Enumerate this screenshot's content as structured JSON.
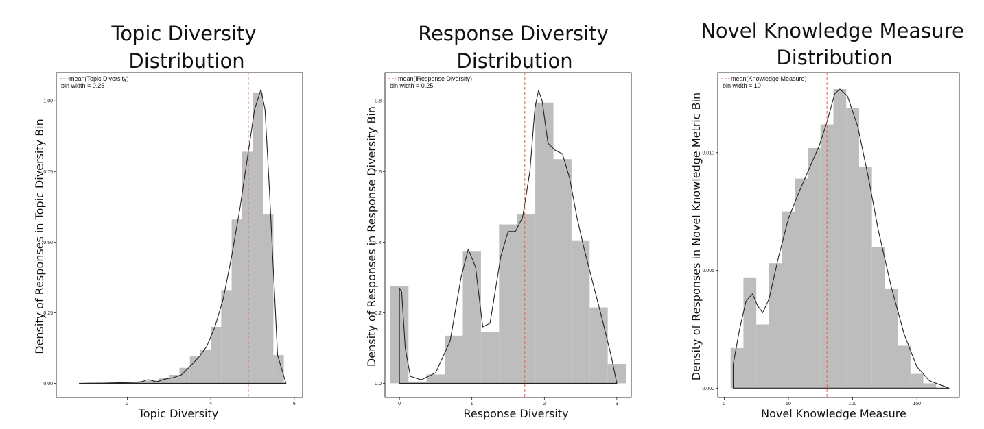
{
  "chart_data": [
    {
      "type": "bar",
      "title_lines": [
        "Topic Diversity",
        "Distribution"
      ],
      "xlabel": "Topic Diversity",
      "ylabel": "Density of Responses in Topic Diversity Bin",
      "legend": [
        "mean(Topic Diversity)",
        "bin width = 0.25"
      ],
      "xlim": [
        0.3,
        6.2
      ],
      "ylim": [
        -0.05,
        1.1
      ],
      "xticks": [
        2,
        4,
        6
      ],
      "yticks": [
        0.0,
        0.25,
        0.5,
        0.75,
        1.0
      ],
      "ytick_labels": [
        "0.00",
        "0.25",
        "0.50",
        "0.75",
        "1.00"
      ],
      "bin_width": 0.25,
      "bins": [
        {
          "x": 1.125,
          "y": 0.002
        },
        {
          "x": 1.375,
          "y": 0.002
        },
        {
          "x": 1.625,
          "y": 0.003
        },
        {
          "x": 1.875,
          "y": 0.004
        },
        {
          "x": 2.125,
          "y": 0.005
        },
        {
          "x": 2.375,
          "y": 0.008
        },
        {
          "x": 2.625,
          "y": 0.01
        },
        {
          "x": 2.875,
          "y": 0.02
        },
        {
          "x": 3.125,
          "y": 0.03
        },
        {
          "x": 3.375,
          "y": 0.055
        },
        {
          "x": 3.625,
          "y": 0.095
        },
        {
          "x": 3.875,
          "y": 0.12
        },
        {
          "x": 4.125,
          "y": 0.2
        },
        {
          "x": 4.375,
          "y": 0.33
        },
        {
          "x": 4.625,
          "y": 0.58
        },
        {
          "x": 4.875,
          "y": 0.82
        },
        {
          "x": 5.125,
          "y": 1.03
        },
        {
          "x": 5.375,
          "y": 0.6
        },
        {
          "x": 5.625,
          "y": 0.1
        }
      ],
      "density_curve": [
        [
          0.85,
          0.0
        ],
        [
          1.5,
          0.001
        ],
        [
          2.0,
          0.003
        ],
        [
          2.3,
          0.004
        ],
        [
          2.5,
          0.013
        ],
        [
          2.6,
          0.01
        ],
        [
          2.7,
          0.005
        ],
        [
          2.9,
          0.015
        ],
        [
          3.1,
          0.02
        ],
        [
          3.3,
          0.03
        ],
        [
          3.5,
          0.06
        ],
        [
          3.7,
          0.09
        ],
        [
          3.9,
          0.13
        ],
        [
          4.1,
          0.2
        ],
        [
          4.3,
          0.3
        ],
        [
          4.5,
          0.45
        ],
        [
          4.7,
          0.62
        ],
        [
          4.9,
          0.82
        ],
        [
          5.05,
          0.97
        ],
        [
          5.2,
          1.04
        ],
        [
          5.3,
          0.97
        ],
        [
          5.4,
          0.7
        ],
        [
          5.5,
          0.4
        ],
        [
          5.6,
          0.1
        ],
        [
          5.8,
          0.0
        ]
      ],
      "mean": 4.9,
      "colors": {
        "bar": "#bdbdbd",
        "mean_line": "#e8604c",
        "curve": "#222222"
      }
    },
    {
      "type": "bar",
      "title_lines": [
        "Response Diversity",
        "Distribution"
      ],
      "xlabel": "Response Diversity",
      "ylabel": "Density of Responses in Response Diversity Bin",
      "legend": [
        "mean(lResponse Diversity)",
        "bin width = 0.25"
      ],
      "xlim": [
        -0.2,
        3.2
      ],
      "ylim": [
        -0.04,
        0.88
      ],
      "xticks": [
        0,
        1,
        2,
        3
      ],
      "yticks": [
        0.0,
        0.2,
        0.4,
        0.6,
        0.8
      ],
      "ytick_labels": [
        "0.0",
        "0.2",
        "0.4",
        "0.6",
        "0.8"
      ],
      "bin_width": 0.25,
      "bins": [
        {
          "x": 0.0,
          "y": 0.275
        },
        {
          "x": 0.25,
          "y": 0.005
        },
        {
          "x": 0.5,
          "y": 0.025
        },
        {
          "x": 0.75,
          "y": 0.135
        },
        {
          "x": 1.0,
          "y": 0.375
        },
        {
          "x": 1.25,
          "y": 0.145
        },
        {
          "x": 1.5,
          "y": 0.45
        },
        {
          "x": 1.75,
          "y": 0.48
        },
        {
          "x": 2.0,
          "y": 0.795
        },
        {
          "x": 2.25,
          "y": 0.635
        },
        {
          "x": 2.5,
          "y": 0.405
        },
        {
          "x": 2.75,
          "y": 0.215
        },
        {
          "x": 3.0,
          "y": 0.055
        }
      ],
      "density_curve": [
        [
          0.0,
          0.27
        ],
        [
          0.03,
          0.26
        ],
        [
          0.08,
          0.1
        ],
        [
          0.15,
          0.02
        ],
        [
          0.3,
          0.01
        ],
        [
          0.5,
          0.03
        ],
        [
          0.7,
          0.12
        ],
        [
          0.85,
          0.3
        ],
        [
          0.95,
          0.38
        ],
        [
          1.05,
          0.33
        ],
        [
          1.15,
          0.16
        ],
        [
          1.25,
          0.17
        ],
        [
          1.4,
          0.36
        ],
        [
          1.5,
          0.43
        ],
        [
          1.6,
          0.43
        ],
        [
          1.7,
          0.47
        ],
        [
          1.8,
          0.6
        ],
        [
          1.87,
          0.78
        ],
        [
          1.92,
          0.83
        ],
        [
          1.97,
          0.8
        ],
        [
          2.05,
          0.68
        ],
        [
          2.15,
          0.66
        ],
        [
          2.25,
          0.65
        ],
        [
          2.35,
          0.58
        ],
        [
          2.45,
          0.47
        ],
        [
          2.55,
          0.38
        ],
        [
          2.65,
          0.3
        ],
        [
          2.8,
          0.18
        ],
        [
          2.92,
          0.08
        ],
        [
          3.0,
          0.0
        ]
      ],
      "mean": 1.73,
      "colors": {
        "bar": "#bdbdbd",
        "mean_line": "#e8604c",
        "curve": "#222222"
      }
    },
    {
      "type": "bar",
      "title_lines": [
        "Novel Knowledge Measure",
        "Distribution"
      ],
      "xlabel": "Novel Knowledge Measure",
      "ylabel": "Density of Responses in Novel Knowledge Metric Bin",
      "legend": [
        "mean(Knowledge Measure)",
        "bin width = 10"
      ],
      "xlim": [
        -5,
        183
      ],
      "ylim": [
        -0.0004,
        0.0134
      ],
      "xticks": [
        0,
        50,
        100,
        150
      ],
      "yticks": [
        0.0,
        0.005,
        0.01
      ],
      "ytick_labels": [
        "0.000",
        "0.005",
        "0.010"
      ],
      "bin_width": 10,
      "bins": [
        {
          "x": 10,
          "y": 0.0017
        },
        {
          "x": 20,
          "y": 0.0047
        },
        {
          "x": 30,
          "y": 0.0027
        },
        {
          "x": 40,
          "y": 0.0053
        },
        {
          "x": 50,
          "y": 0.0075
        },
        {
          "x": 60,
          "y": 0.0089
        },
        {
          "x": 70,
          "y": 0.0102
        },
        {
          "x": 80,
          "y": 0.0112
        },
        {
          "x": 90,
          "y": 0.0127
        },
        {
          "x": 100,
          "y": 0.0119
        },
        {
          "x": 110,
          "y": 0.0094
        },
        {
          "x": 120,
          "y": 0.006
        },
        {
          "x": 130,
          "y": 0.0042
        },
        {
          "x": 140,
          "y": 0.0018
        },
        {
          "x": 150,
          "y": 0.0006
        },
        {
          "x": 160,
          "y": 0.0002
        }
      ],
      "density_curve": [
        [
          7,
          0.001
        ],
        [
          12,
          0.0025
        ],
        [
          17,
          0.0037
        ],
        [
          22,
          0.004
        ],
        [
          26,
          0.0035
        ],
        [
          30,
          0.0032
        ],
        [
          35,
          0.0038
        ],
        [
          42,
          0.0055
        ],
        [
          50,
          0.0072
        ],
        [
          58,
          0.0083
        ],
        [
          66,
          0.0093
        ],
        [
          74,
          0.0103
        ],
        [
          80,
          0.0113
        ],
        [
          86,
          0.0125
        ],
        [
          90,
          0.0127
        ],
        [
          96,
          0.0124
        ],
        [
          104,
          0.0111
        ],
        [
          112,
          0.009
        ],
        [
          120,
          0.0067
        ],
        [
          130,
          0.0043
        ],
        [
          140,
          0.0023
        ],
        [
          150,
          0.0009
        ],
        [
          160,
          0.0003
        ],
        [
          170,
          0.0001
        ],
        [
          175,
          0.0
        ]
      ],
      "mean": 80,
      "colors": {
        "bar": "#bdbdbd",
        "mean_line": "#e8604c",
        "curve": "#222222"
      }
    }
  ]
}
